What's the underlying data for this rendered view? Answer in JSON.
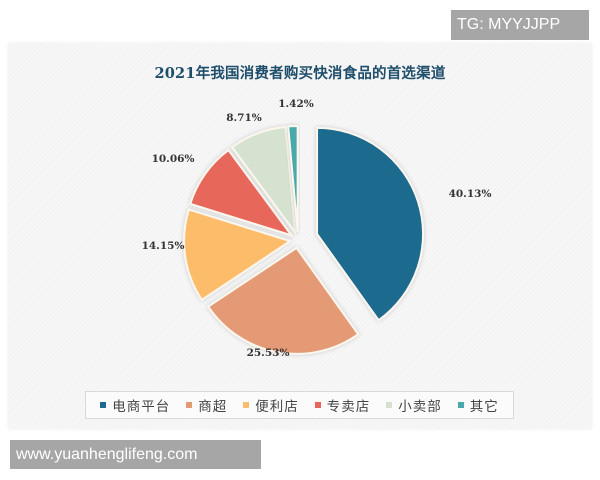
{
  "watermarks": {
    "top": "TG: MYYJJPP",
    "bottom": "www.yuanhenglifeng.com"
  },
  "chart": {
    "title": "2021年我国消费者购买快消食品的首选渠道"
  },
  "legend": {
    "items": [
      {
        "label": "电商平台",
        "color": "#1d6a8e"
      },
      {
        "label": "商超",
        "color": "#e59a76"
      },
      {
        "label": "便利店",
        "color": "#fcbc6a"
      },
      {
        "label": "专卖店",
        "color": "#e7675a"
      },
      {
        "label": "小卖部",
        "color": "#d4e2cf"
      },
      {
        "label": "其它",
        "color": "#4aa8ac"
      }
    ]
  },
  "labels": [
    "40.13%",
    "25.53%",
    "14.15%",
    "10.06%",
    "8.71%",
    "1.42%"
  ],
  "chart_data": {
    "type": "pie",
    "title": "2021年我国消费者购买快消食品的首选渠道",
    "categories": [
      "电商平台",
      "商超",
      "便利店",
      "专卖店",
      "小卖部",
      "其它"
    ],
    "values": [
      40.13,
      25.53,
      14.15,
      10.06,
      8.71,
      1.42
    ],
    "unit": "%",
    "colors": [
      "#1d6a8e",
      "#e59a76",
      "#fcbc6a",
      "#e7675a",
      "#d4e2cf",
      "#4aa8ac"
    ],
    "start_angle": "12 o'clock",
    "direction": "clockwise",
    "exploded": true,
    "legend_position": "bottom",
    "data_labels": [
      "40.13%",
      "25.53%",
      "14.15%",
      "10.06%",
      "8.71%",
      "1.42%"
    ]
  }
}
